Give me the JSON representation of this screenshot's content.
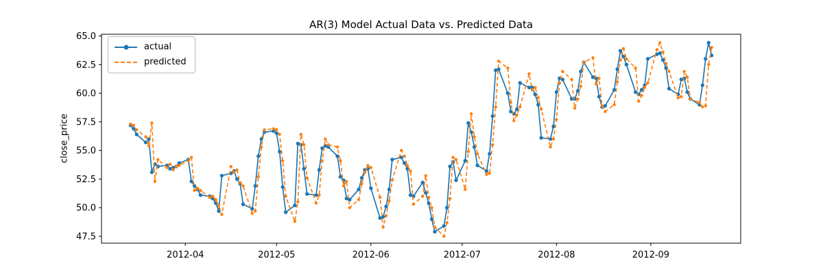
{
  "chart_data": {
    "type": "line",
    "title": "AR(3) Model Actual Data vs. Predicted Data",
    "xlabel": "",
    "ylabel": "close_price",
    "grid": false,
    "legend_position": "upper-left",
    "ylim": [
      46.9,
      65.15
    ],
    "x_margin_frac": 0.05,
    "yticks": {
      "values": [
        47.5,
        50.0,
        52.5,
        55.0,
        57.5,
        60.0,
        62.5,
        65.0
      ],
      "labels": [
        "47.5",
        "50.0",
        "52.5",
        "55.0",
        "57.5",
        "60.0",
        "62.5",
        "65.0"
      ]
    },
    "xticks": {
      "dates": [
        "2012-04-01",
        "2012-05-01",
        "2012-06-01",
        "2012-07-01",
        "2012-08-01",
        "2012-09-01"
      ],
      "labels": [
        "2012-04",
        "2012-05",
        "2012-06",
        "2012-07",
        "2012-08",
        "2012-09"
      ]
    },
    "x": [
      "2012-03-14",
      "2012-03-15",
      "2012-03-16",
      "2012-03-19",
      "2012-03-20",
      "2012-03-21",
      "2012-03-22",
      "2012-03-23",
      "2012-03-26",
      "2012-03-27",
      "2012-03-28",
      "2012-03-29",
      "2012-03-30",
      "2012-04-02",
      "2012-04-03",
      "2012-04-04",
      "2012-04-05",
      "2012-04-06",
      "2012-04-09",
      "2012-04-10",
      "2012-04-11",
      "2012-04-12",
      "2012-04-13",
      "2012-04-16",
      "2012-04-17",
      "2012-04-18",
      "2012-04-19",
      "2012-04-20",
      "2012-04-23",
      "2012-04-24",
      "2012-04-25",
      "2012-04-26",
      "2012-04-27",
      "2012-04-30",
      "2012-05-01",
      "2012-05-02",
      "2012-05-03",
      "2012-05-04",
      "2012-05-07",
      "2012-05-08",
      "2012-05-09",
      "2012-05-10",
      "2012-05-11",
      "2012-05-14",
      "2012-05-15",
      "2012-05-16",
      "2012-05-17",
      "2012-05-18",
      "2012-05-21",
      "2012-05-22",
      "2012-05-23",
      "2012-05-24",
      "2012-05-25",
      "2012-05-28",
      "2012-05-29",
      "2012-05-30",
      "2012-05-31",
      "2012-06-01",
      "2012-06-04",
      "2012-06-05",
      "2012-06-06",
      "2012-06-07",
      "2012-06-08",
      "2012-06-11",
      "2012-06-12",
      "2012-06-13",
      "2012-06-14",
      "2012-06-15",
      "2012-06-18",
      "2012-06-19",
      "2012-06-20",
      "2012-06-21",
      "2012-06-22",
      "2012-06-25",
      "2012-06-26",
      "2012-06-27",
      "2012-06-28",
      "2012-06-29",
      "2012-07-02",
      "2012-07-03",
      "2012-07-04",
      "2012-07-05",
      "2012-07-06",
      "2012-07-09",
      "2012-07-10",
      "2012-07-11",
      "2012-07-12",
      "2012-07-13",
      "2012-07-16",
      "2012-07-17",
      "2012-07-18",
      "2012-07-19",
      "2012-07-20",
      "2012-07-23",
      "2012-07-24",
      "2012-07-25",
      "2012-07-26",
      "2012-07-27",
      "2012-07-30",
      "2012-07-31",
      "2012-08-01",
      "2012-08-02",
      "2012-08-03",
      "2012-08-06",
      "2012-08-07",
      "2012-08-08",
      "2012-08-09",
      "2012-08-10",
      "2012-08-13",
      "2012-08-14",
      "2012-08-15",
      "2012-08-16",
      "2012-08-17",
      "2012-08-20",
      "2012-08-21",
      "2012-08-22",
      "2012-08-23",
      "2012-08-24",
      "2012-08-27",
      "2012-08-28",
      "2012-08-29",
      "2012-08-30",
      "2012-08-31",
      "2012-09-03",
      "2012-09-04",
      "2012-09-05",
      "2012-09-06",
      "2012-09-07",
      "2012-09-10",
      "2012-09-11",
      "2012-09-12",
      "2012-09-13",
      "2012-09-14",
      "2012-09-17",
      "2012-09-18",
      "2012-09-19",
      "2012-09-20",
      "2012-09-21"
    ],
    "series": [
      {
        "name": "actual",
        "color": "#1f77b4",
        "linestyle": "solid",
        "marker": "circle",
        "values": [
          57.2,
          56.9,
          56.4,
          55.7,
          56.0,
          53.1,
          53.8,
          53.6,
          53.7,
          53.4,
          53.5,
          53.6,
          53.9,
          54.2,
          52.3,
          51.9,
          51.6,
          51.1,
          51.0,
          50.8,
          50.4,
          49.7,
          52.8,
          53.0,
          53.2,
          52.5,
          52.1,
          50.3,
          49.9,
          51.9,
          54.5,
          56.0,
          56.6,
          56.7,
          56.5,
          54.9,
          51.8,
          49.6,
          50.2,
          55.6,
          55.5,
          53.4,
          51.2,
          51.1,
          53.3,
          55.2,
          55.4,
          55.3,
          54.5,
          52.7,
          52.4,
          50.8,
          50.7,
          51.6,
          52.6,
          53.3,
          53.4,
          51.7,
          49.1,
          49.2,
          50.1,
          51.6,
          54.2,
          54.4,
          53.9,
          53.4,
          51.1,
          51.0,
          52.2,
          51.3,
          50.4,
          49.0,
          47.9,
          48.4,
          50.0,
          53.6,
          54.0,
          52.4,
          54.1,
          57.4,
          56.6,
          55.3,
          53.7,
          53.2,
          54.7,
          58.0,
          62.0,
          62.1,
          60.0,
          58.4,
          58.2,
          58.6,
          60.9,
          60.5,
          60.5,
          59.9,
          59.0,
          56.1,
          56.0,
          57.1,
          60.1,
          61.3,
          61.2,
          59.5,
          59.5,
          60.2,
          61.9,
          62.7,
          61.4,
          61.3,
          59.7,
          58.8,
          58.9,
          60.3,
          62.1,
          63.7,
          63.2,
          62.5,
          60.1,
          59.9,
          60.3,
          60.7,
          63.0,
          63.4,
          63.5,
          62.9,
          62.2,
          60.4,
          59.9,
          61.2,
          61.3,
          60.1,
          59.5,
          59.0,
          60.7,
          63.0,
          64.4,
          63.3
        ]
      },
      {
        "name": "predicted",
        "color": "#ff7f0e",
        "linestyle": "dashed",
        "marker": "circle",
        "values": [
          57.3,
          57.2,
          56.8,
          56.2,
          55.4,
          57.4,
          52.3,
          54.2,
          53.5,
          53.8,
          53.3,
          53.6,
          53.7,
          54.1,
          54.4,
          51.5,
          51.7,
          51.5,
          50.9,
          51.0,
          50.7,
          50.2,
          49.4,
          53.6,
          53.1,
          53.3,
          52.2,
          51.9,
          49.5,
          49.7,
          52.7,
          55.3,
          56.8,
          56.9,
          56.8,
          56.4,
          54.1,
          51.0,
          48.8,
          50.5,
          56.4,
          55.5,
          52.6,
          50.4,
          51.1,
          54.1,
          56.0,
          55.5,
          55.3,
          54.1,
          51.9,
          52.3,
          50.0,
          50.7,
          52.1,
          53.1,
          53.7,
          53.5,
          50.9,
          48.3,
          49.3,
          50.6,
          52.4,
          55.0,
          54.5,
          53.7,
          53.2,
          50.3,
          51.0,
          52.8,
          50.9,
          50.0,
          48.3,
          47.5,
          48.7,
          50.8,
          54.4,
          54.2,
          51.6,
          54.9,
          58.2,
          56.2,
          54.7,
          52.9,
          53.0,
          55.5,
          58.8,
          62.8,
          62.2,
          59.2,
          57.6,
          58.1,
          58.8,
          61.7,
          60.3,
          60.5,
          59.6,
          58.6,
          55.3,
          56.0,
          57.7,
          60.9,
          61.9,
          61.2,
          58.7,
          59.5,
          60.6,
          62.7,
          63.1,
          60.8,
          61.3,
          58.9,
          58.4,
          59.0,
          61.0,
          62.9,
          63.9,
          63.0,
          62.2,
          59.3,
          59.8,
          60.5,
          60.9,
          63.8,
          64.4,
          63.6,
          62.6,
          61.9,
          59.6,
          59.7,
          61.9,
          61.4,
          59.5,
          59.2,
          58.8,
          58.9,
          62.5,
          64.0
        ]
      }
    ]
  },
  "legend": {
    "actual_label": "actual",
    "predicted_label": "predicted"
  }
}
